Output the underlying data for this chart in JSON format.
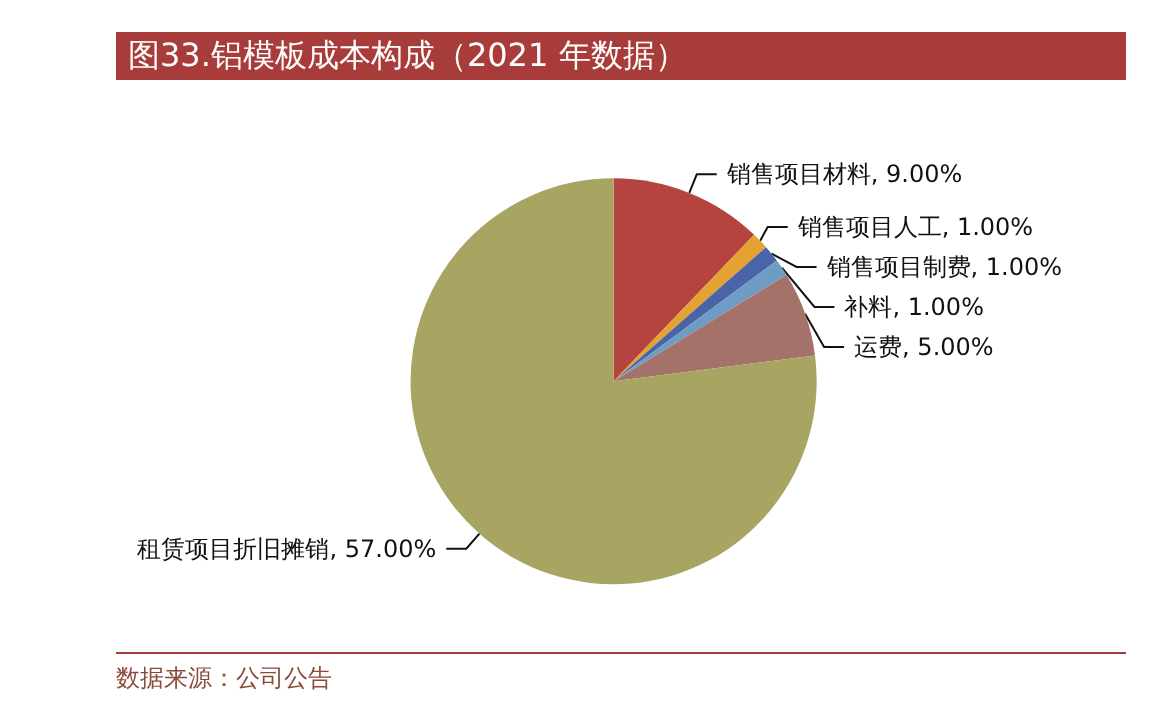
{
  "chart_data": {
    "type": "pie",
    "title": "图33.铝模板成本构成（2021 年数据）",
    "categories": [
      "销售项目材料",
      "销售项目人工",
      "销售项目制费",
      "补料",
      "运费",
      "租赁项目折旧摊销"
    ],
    "values": [
      9,
      1,
      1,
      1,
      5,
      57
    ],
    "value_labels": [
      "9.00%",
      "1.00%",
      "1.00%",
      "1.00%",
      "5.00%",
      "57.00%"
    ],
    "colors": [
      "#b5443f",
      "#e3a232",
      "#4a64a8",
      "#6f9cc4",
      "#a5726a",
      "#a8a562"
    ],
    "legend": false,
    "annotations": [
      "数据来源：公司公告"
    ]
  }
}
